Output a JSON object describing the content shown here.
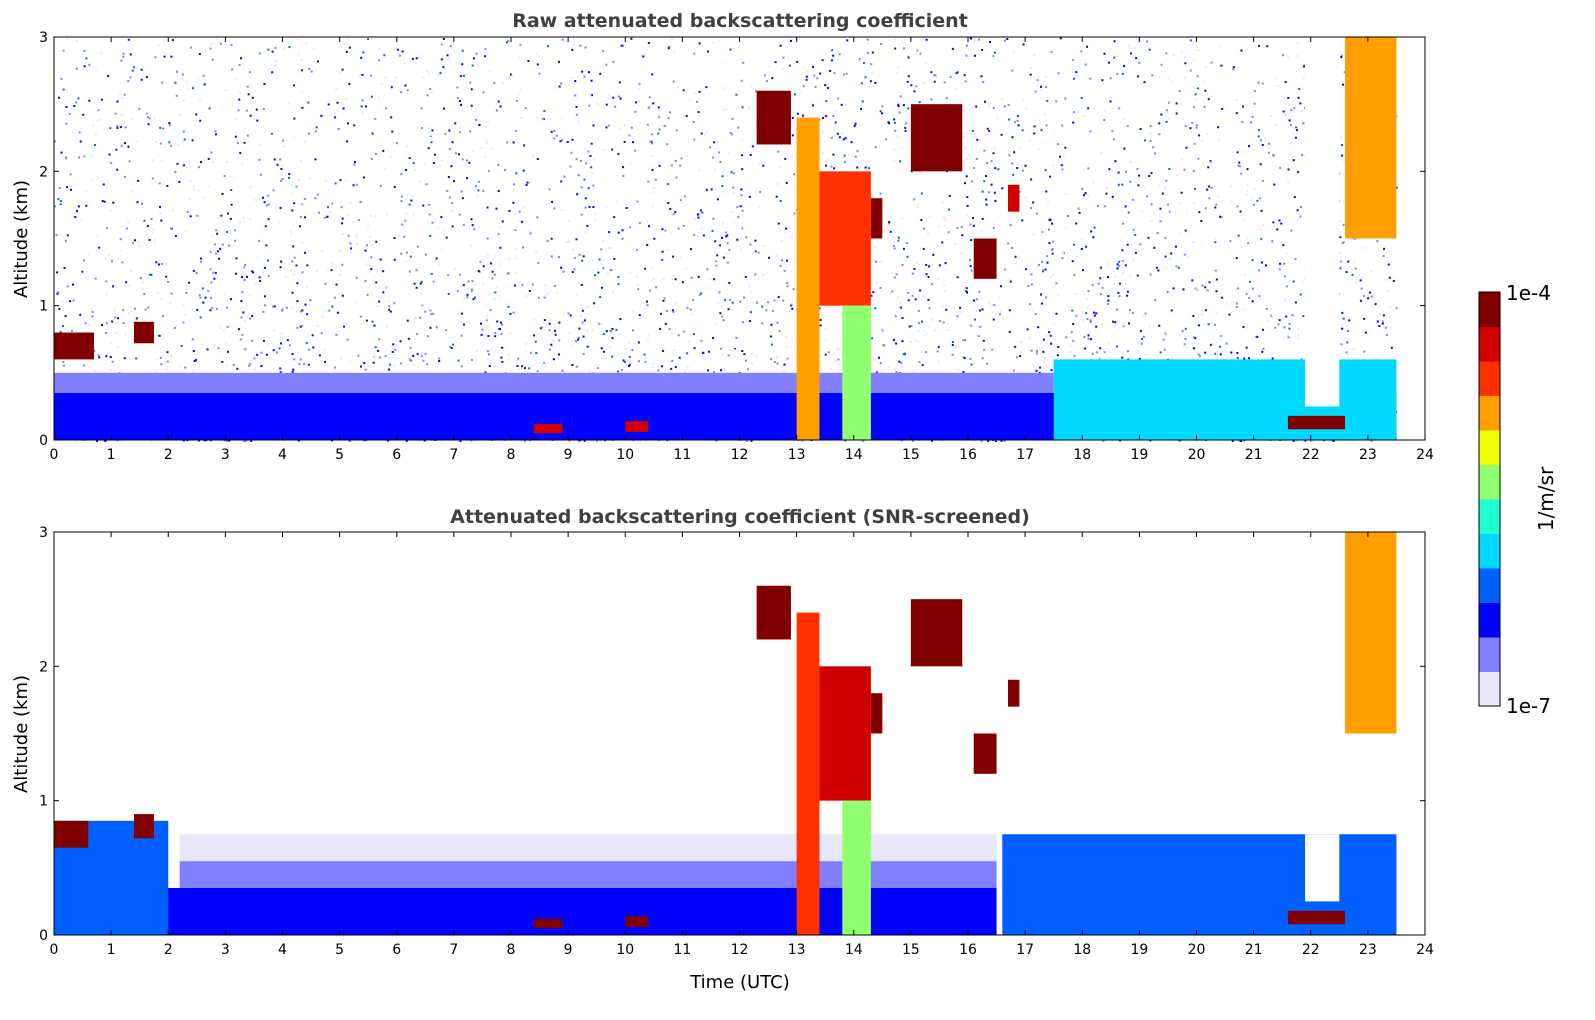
{
  "chart_data": [
    {
      "type": "heatmap",
      "title": "Raw attenuated backscattering coefficient",
      "xlabel": "",
      "ylabel": "Altitude (km)",
      "xlim": [
        0,
        24
      ],
      "ylim": [
        0,
        3
      ],
      "xticks": [
        "0",
        "1",
        "2",
        "3",
        "4",
        "5",
        "6",
        "7",
        "8",
        "9",
        "10",
        "11",
        "12",
        "13",
        "14",
        "15",
        "16",
        "17",
        "18",
        "19",
        "20",
        "21",
        "22",
        "23",
        "24"
      ],
      "yticks": [
        "0",
        "1",
        "2",
        "3"
      ],
      "noise": {
        "t": [
          0,
          23.5
        ],
        "z": [
          0,
          3
        ],
        "log10_value": -6.6
      },
      "features": [
        {
          "name": "boundary-layer",
          "t": [
            0,
            23.5
          ],
          "z": [
            0,
            0.35
          ],
          "log10_value": -6.3
        },
        {
          "name": "boundary-layer-top",
          "t": [
            0,
            17.5
          ],
          "z": [
            0.35,
            0.5
          ],
          "log10_value": -6.6
        },
        {
          "name": "aerosol-layer-evening",
          "t": [
            17.5,
            23.5
          ],
          "z": [
            0,
            0.6
          ],
          "log10_value": -5.9
        },
        {
          "name": "cloud-0h",
          "t": [
            0,
            0.7
          ],
          "z": [
            0.6,
            0.8
          ],
          "log10_value": -4.2
        },
        {
          "name": "cloud-1.5h",
          "t": [
            1.4,
            1.75
          ],
          "z": [
            0.72,
            0.88
          ],
          "log10_value": -4.2
        },
        {
          "name": "fog-8.6h",
          "t": [
            8.4,
            8.9
          ],
          "z": [
            0.05,
            0.12
          ],
          "log10_value": -4.4
        },
        {
          "name": "fog-10.2h",
          "t": [
            10,
            10.4
          ],
          "z": [
            0.06,
            0.14
          ],
          "log10_value": -4.4
        },
        {
          "name": "cloud-12.6h",
          "t": [
            12.3,
            12.9
          ],
          "z": [
            2.2,
            2.6
          ],
          "log10_value": -4.1
        },
        {
          "name": "plume-13h",
          "t": [
            13,
            13.4
          ],
          "z": [
            0,
            2.4
          ],
          "log10_value": -4.8
        },
        {
          "name": "plume-13.7h",
          "t": [
            13.4,
            14.3
          ],
          "z": [
            1,
            2
          ],
          "log10_value": -4.6
        },
        {
          "name": "plume-base-14h",
          "t": [
            13.8,
            14.3
          ],
          "z": [
            0,
            1
          ],
          "log10_value": -5.5
        },
        {
          "name": "cloud-14.4h",
          "t": [
            14.3,
            14.5
          ],
          "z": [
            1.5,
            1.8
          ],
          "log10_value": -4.1
        },
        {
          "name": "cloud-15.5h",
          "t": [
            15,
            15.9
          ],
          "z": [
            2,
            2.5
          ],
          "log10_value": -4.1
        },
        {
          "name": "cloud-16.3h",
          "t": [
            16.1,
            16.5
          ],
          "z": [
            1.2,
            1.5
          ],
          "log10_value": -4.2
        },
        {
          "name": "cloud-16.8h",
          "t": [
            16.7,
            16.9
          ],
          "z": [
            1.7,
            1.9
          ],
          "log10_value": -4.3
        },
        {
          "name": "clear-gap-22h",
          "t": [
            21.9,
            22.5
          ],
          "z": [
            0.25,
            3
          ],
          "log10_value": null
        },
        {
          "name": "fog-22h",
          "t": [
            21.6,
            22.6
          ],
          "z": [
            0.08,
            0.18
          ],
          "log10_value": -4.2
        },
        {
          "name": "cirrus-23h",
          "t": [
            22.6,
            23.5
          ],
          "z": [
            1.5,
            3
          ],
          "log10_value": -5.0
        }
      ]
    },
    {
      "type": "heatmap",
      "title": "Attenuated backscattering coefficient (SNR-screened)",
      "xlabel": "Time (UTC)",
      "ylabel": "Altitude (km)",
      "xlim": [
        0,
        24
      ],
      "ylim": [
        0,
        3
      ],
      "xticks": [
        "0",
        "1",
        "2",
        "3",
        "4",
        "5",
        "6",
        "7",
        "8",
        "9",
        "10",
        "11",
        "12",
        "13",
        "14",
        "15",
        "16",
        "17",
        "18",
        "19",
        "20",
        "21",
        "22",
        "23",
        "24"
      ],
      "yticks": [
        "0",
        "1",
        "2",
        "3"
      ],
      "features": [
        {
          "name": "boundary-layer",
          "t": [
            0,
            16.5
          ],
          "z": [
            0,
            0.35
          ],
          "log10_value": -6.3
        },
        {
          "name": "boundary-layer-mid",
          "t": [
            2.2,
            16.5
          ],
          "z": [
            0.35,
            0.55
          ],
          "log10_value": -6.7
        },
        {
          "name": "boundary-layer-top",
          "t": [
            2.2,
            16.5
          ],
          "z": [
            0.55,
            0.75
          ],
          "log10_value": -6.95
        },
        {
          "name": "boundary-layer-early",
          "t": [
            0,
            2
          ],
          "z": [
            0,
            0.85
          ],
          "log10_value": -6.2
        },
        {
          "name": "aerosol-layer-evening",
          "t": [
            16.6,
            23.5
          ],
          "z": [
            0,
            0.75
          ],
          "log10_value": -6.1
        },
        {
          "name": "cloud-0h",
          "t": [
            0,
            0.6
          ],
          "z": [
            0.65,
            0.85
          ],
          "log10_value": -3.9
        },
        {
          "name": "cloud-1.5h",
          "t": [
            1.4,
            1.75
          ],
          "z": [
            0.72,
            0.9
          ],
          "log10_value": -3.9
        },
        {
          "name": "fog-8.6h",
          "t": [
            8.4,
            8.9
          ],
          "z": [
            0.05,
            0.12
          ],
          "log10_value": -4.0
        },
        {
          "name": "fog-10.2h",
          "t": [
            10,
            10.4
          ],
          "z": [
            0.06,
            0.14
          ],
          "log10_value": -3.9
        },
        {
          "name": "cloud-12.6h",
          "t": [
            12.3,
            12.9
          ],
          "z": [
            2.2,
            2.6
          ],
          "log10_value": -3.9
        },
        {
          "name": "plume-13h",
          "t": [
            13,
            13.4
          ],
          "z": [
            0,
            2.4
          ],
          "log10_value": -4.6
        },
        {
          "name": "plume-13.7h",
          "t": [
            13.4,
            14.3
          ],
          "z": [
            1,
            2
          ],
          "log10_value": -4.5
        },
        {
          "name": "plume-base-14h",
          "t": [
            13.8,
            14.3
          ],
          "z": [
            0,
            1
          ],
          "log10_value": -5.5
        },
        {
          "name": "cloud-14.4h",
          "t": [
            14.3,
            14.5
          ],
          "z": [
            1.5,
            1.8
          ],
          "log10_value": -3.9
        },
        {
          "name": "cloud-15.5h",
          "t": [
            15,
            15.9
          ],
          "z": [
            2,
            2.5
          ],
          "log10_value": -3.9
        },
        {
          "name": "cloud-16.3h",
          "t": [
            16.1,
            16.5
          ],
          "z": [
            1.2,
            1.5
          ],
          "log10_value": -4.1
        },
        {
          "name": "cloud-16.8h",
          "t": [
            16.7,
            16.9
          ],
          "z": [
            1.7,
            1.9
          ],
          "log10_value": -3.9
        },
        {
          "name": "clear-gap-22h",
          "t": [
            21.9,
            22.5
          ],
          "z": [
            0.25,
            0.75
          ],
          "log10_value": null
        },
        {
          "name": "fog-22h",
          "t": [
            21.6,
            22.6
          ],
          "z": [
            0.08,
            0.18
          ],
          "log10_value": -3.9
        },
        {
          "name": "cirrus-23h",
          "t": [
            22.6,
            23.5
          ],
          "z": [
            1.5,
            3
          ],
          "log10_value": -5.0
        }
      ]
    }
  ],
  "colorbar": {
    "label": "1/m/sr",
    "min_label": "1e-7",
    "max_label": "1e-4",
    "log10_range": [
      -7,
      -4
    ],
    "colormap": [
      "#e8e8fa",
      "#8080ff",
      "#0000ff",
      "#0060ff",
      "#00d8ff",
      "#20ffd0",
      "#90ff70",
      "#eeff00",
      "#ffa000",
      "#ff3000",
      "#d00000",
      "#800000"
    ]
  }
}
